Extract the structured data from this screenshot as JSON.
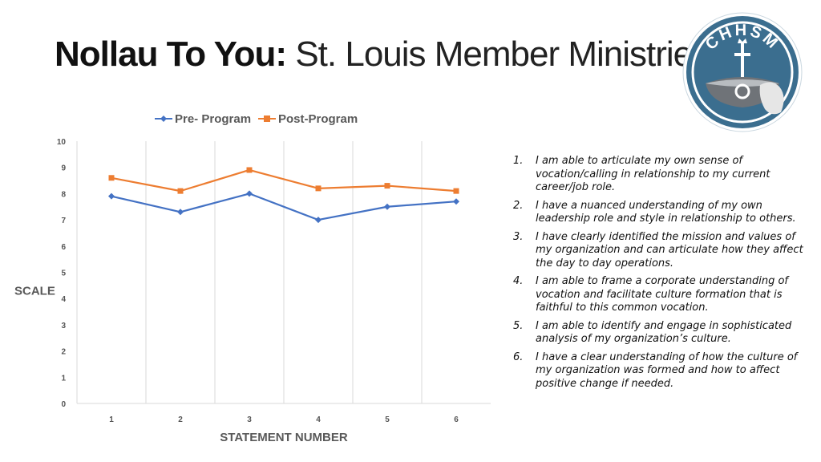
{
  "title": {
    "bold": "Nollau To You:",
    "regular": "St. Louis Member Ministries"
  },
  "logo": {
    "text": "CHHSM",
    "icon": "chalice-cross-seal-icon"
  },
  "colors": {
    "pre": "#4472C4",
    "post": "#ED7D31",
    "logo_blue": "#3B6E8F",
    "grid": "#D9D9D9"
  },
  "chart_data": {
    "type": "line",
    "x": [
      "1",
      "2",
      "3",
      "4",
      "5",
      "6"
    ],
    "series": [
      {
        "name": "Pre- Program",
        "values": [
          7.9,
          7.3,
          8.0,
          7.0,
          7.5,
          7.7
        ],
        "marker": "diamond"
      },
      {
        "name": "Post-Program",
        "values": [
          8.6,
          8.1,
          8.9,
          8.2,
          8.3,
          8.1
        ],
        "marker": "square"
      }
    ],
    "xlabel": "STATEMENT NUMBER",
    "ylabel": "SCALE",
    "ylim": [
      0,
      10
    ],
    "yticks": [
      "0",
      "1",
      "2",
      "3",
      "4",
      "5",
      "6",
      "7",
      "8",
      "9",
      "10"
    ],
    "grid": "vertical",
    "legend": "top"
  },
  "statements": [
    {
      "num": "1.",
      "text": "I am able to articulate my own sense of vocation/calling in relationship to my current career/job role."
    },
    {
      "num": "2.",
      "text": "I have a nuanced understanding of my own leadership role and style in relationship to others."
    },
    {
      "num": "3.",
      "text": "I have clearly identified the mission and values of my organization and can articulate how they affect the day to day operations."
    },
    {
      "num": "4.",
      "text": "I am able to frame a corporate understanding of vocation and facilitate culture formation that is faithful to this common vocation."
    },
    {
      "num": "5.",
      "text": "I am able to identify and engage in sophisticated analysis of my organization’s culture."
    },
    {
      "num": "6.",
      "text": "I have a clear understanding of how the culture of my organization was formed and how to affect positive change if needed."
    }
  ]
}
